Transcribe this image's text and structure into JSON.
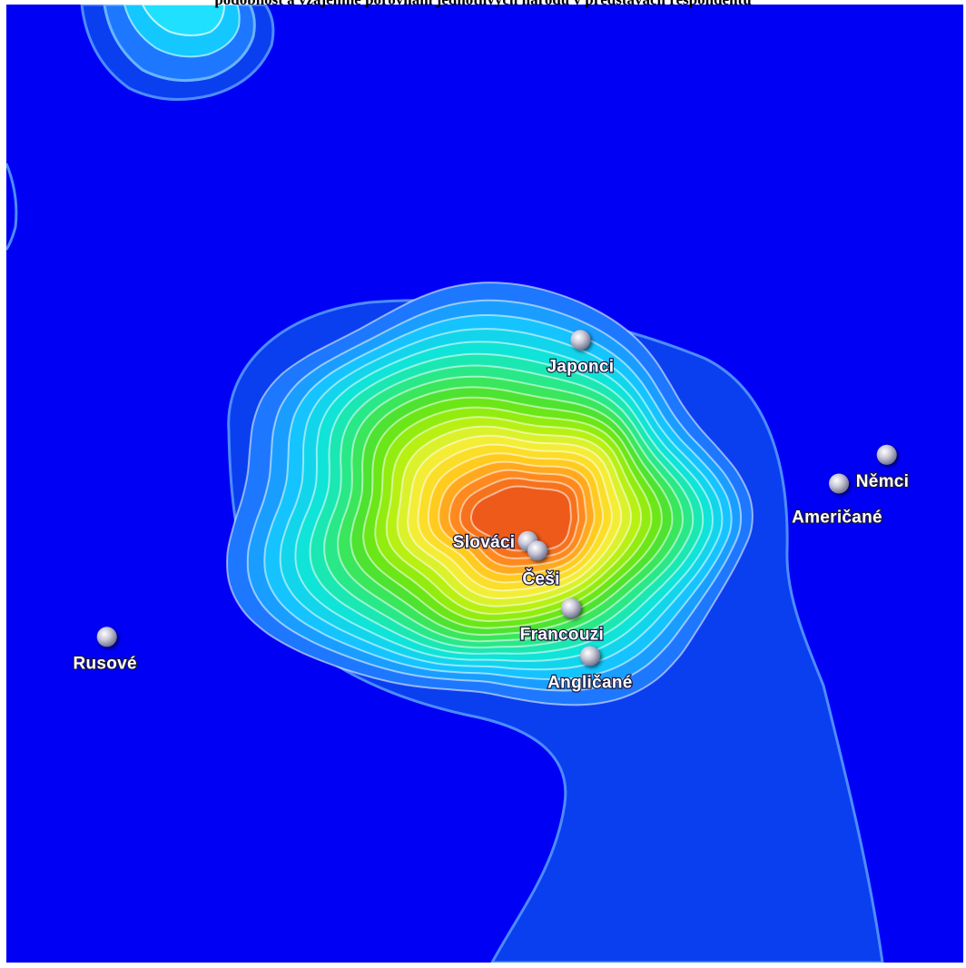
{
  "caption": "podobnost a vzájemné porovnání jednotlivých národů v představách respondentů",
  "colors": {
    "background": "#0000f4",
    "outer_plateau": "#0a3ff0",
    "contour_line": "#4d8cff",
    "label_text": "#ffffff",
    "node": "#c8c8d8"
  },
  "chart_data": {
    "type": "contour",
    "title": "",
    "xlabel": "",
    "ylabel": "",
    "grid": false,
    "legend": "none",
    "color_scale": [
      "#0000f4",
      "#0a3ff0",
      "#1e78ff",
      "#14c8ff",
      "#10e6d2",
      "#2ee87a",
      "#55e21c",
      "#a8f00a",
      "#f2f23a",
      "#ffd21e",
      "#ff8c1e",
      "#ee5a1a"
    ],
    "points": [
      {
        "label": "Japonci",
        "x": 0.6,
        "y": 0.65
      },
      {
        "label": "Němci",
        "x": 0.92,
        "y": 0.53
      },
      {
        "label": "Američané",
        "x": 0.87,
        "y": 0.5
      },
      {
        "label": "Slováci",
        "x": 0.545,
        "y": 0.44
      },
      {
        "label": "Češi",
        "x": 0.555,
        "y": 0.43
      },
      {
        "label": "Francouzi",
        "x": 0.59,
        "y": 0.37
      },
      {
        "label": "Angličané",
        "x": 0.61,
        "y": 0.32
      },
      {
        "label": "Rusové",
        "x": 0.105,
        "y": 0.34
      }
    ]
  }
}
